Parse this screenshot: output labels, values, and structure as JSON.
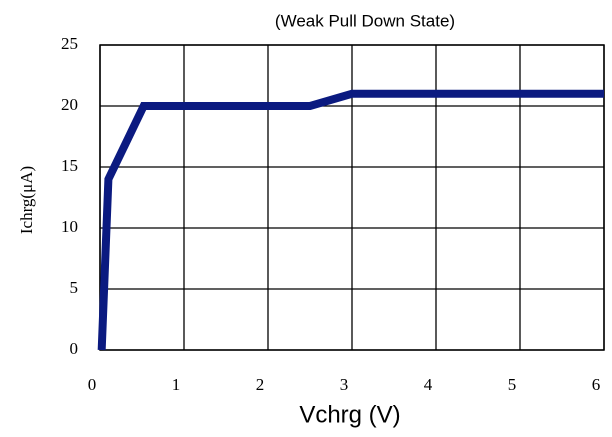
{
  "chart_data": {
    "type": "line",
    "title": "(Weak Pull Down State)",
    "x_label": "Vchrg (V)",
    "y_label": "Ichrg(μA)",
    "x": [
      0.02,
      0.1,
      0.52,
      2.5,
      3.0,
      6.0
    ],
    "series": [
      {
        "name": "Ichrg",
        "color": "#0b1a80",
        "values": [
          0,
          14,
          20,
          20,
          21,
          21
        ]
      }
    ],
    "xlim": [
      0,
      6
    ],
    "xticks": [
      0,
      1,
      2,
      3,
      4,
      5,
      6
    ],
    "ylim": [
      0,
      25
    ],
    "yticks": [
      0,
      5,
      10,
      15,
      20,
      25
    ],
    "grid": true
  }
}
